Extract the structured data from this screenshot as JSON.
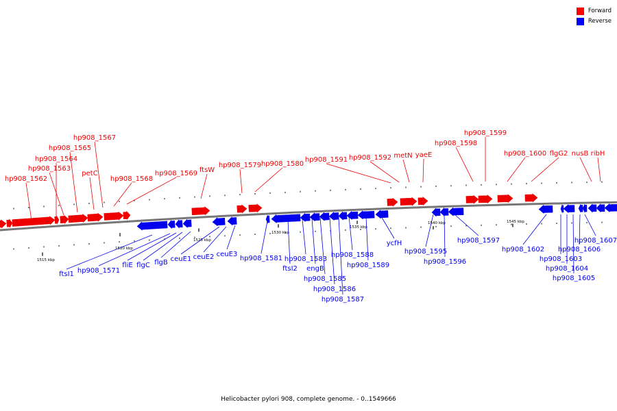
{
  "caption": "Helicobacter pylori 908, complete genome. - 0..1549666",
  "legend": [
    {
      "label": "Forward",
      "color": "#ff0000"
    },
    {
      "label": "Reverse",
      "color": "#0000ff"
    }
  ],
  "colors": {
    "forward": "#ee0000",
    "reverse": "#0000ee",
    "backbone": "#777777"
  },
  "kbp_labels": [
    "1515 kbp",
    "1520 kbp",
    "1525 kbp",
    "1530 kbp",
    "1535 kbp",
    "1540 kbp",
    "1545 kbp"
  ],
  "forward_genes": [
    "hp908_1562",
    "hp908_1564",
    "hp908_1563",
    "hp908_1565",
    "hp908_1567",
    "petC",
    "hp908_1568",
    "hp908_1569",
    "ftsW",
    "hp908_1579",
    "hp908_1580",
    "hp908_1591",
    "hp908_1592",
    "metN",
    "yaeE",
    "hp908_1598",
    "hp908_1599",
    "hp908_1600",
    "flgG2",
    "nusB",
    "ribH"
  ],
  "reverse_genes": [
    "ftsI1",
    "hp908_1571",
    "fliE",
    "flgC",
    "flgB",
    "ceuE1",
    "ceuE2",
    "ceuE3",
    "hp908_1581",
    "ftsI2",
    "hp908_1583",
    "engB",
    "hp908_1585",
    "hp908_1586",
    "hp908_1587",
    "hp908_1588",
    "hp908_1589",
    "ycfH",
    "hp908_1595",
    "hp908_1596",
    "hp908_1597",
    "hp908_1602",
    "hp908_1603",
    "hp908_1604",
    "hp908_1605",
    "hp908_1606",
    "hp908_1607"
  ]
}
